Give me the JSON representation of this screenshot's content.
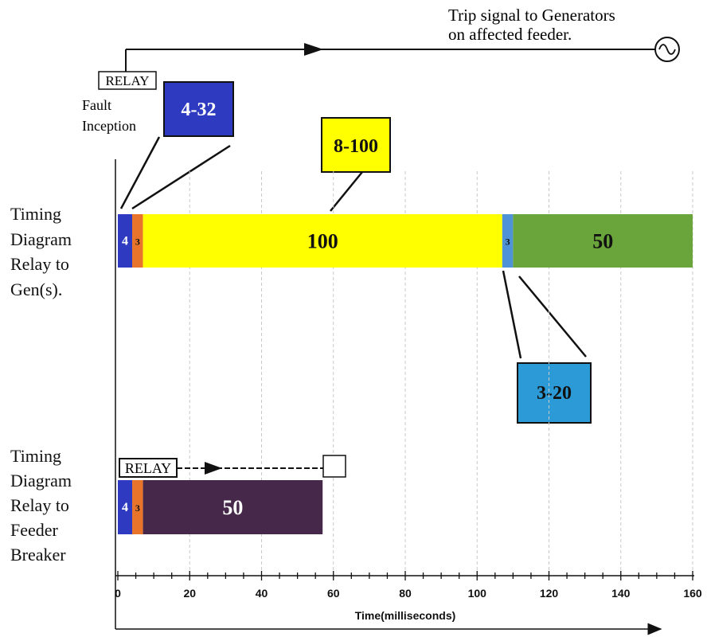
{
  "trip_signal": {
    "line1": "Trip signal to Generators",
    "line2": "on affected feeder."
  },
  "fault": {
    "relay_label": "RELAY",
    "fault_label_1": "Fault",
    "fault_label_2": "Inception"
  },
  "callouts": {
    "c1": {
      "text": "4-32",
      "color": "#2e3bc0"
    },
    "c2": {
      "text": "8-100",
      "color": "#ffff00"
    },
    "c3": {
      "text": "3-20",
      "color": "#2b9ad6"
    }
  },
  "row_labels": {
    "gen": [
      "Timing",
      "Diagram",
      "Relay to",
      "Gen(s)."
    ],
    "feeder": [
      "Timing",
      "Diagram",
      "Relay to",
      "Feeder",
      "Breaker"
    ]
  },
  "relay2_label": "RELAY",
  "axis": {
    "title": "Time(milliseconds)",
    "ticks": [
      "0",
      "20",
      "40",
      "60",
      "80",
      "100",
      "120",
      "140",
      "160"
    ]
  },
  "chart_data": {
    "type": "bar",
    "xlabel": "Time(milliseconds)",
    "xlim": [
      0,
      160
    ],
    "rows": [
      {
        "name": "Timing Diagram Relay to Gen(s).",
        "segments": [
          {
            "value": 4,
            "label": "4",
            "color": "#2e3bc0"
          },
          {
            "value": 3,
            "label": "3",
            "color": "#e8732a"
          },
          {
            "value": 100,
            "label": "100",
            "color": "#ffff00"
          },
          {
            "value": 3,
            "label": "3",
            "color": "#4f92d6"
          },
          {
            "value": 50,
            "label": "50",
            "color": "#6aa53c"
          }
        ]
      },
      {
        "name": "Timing Diagram Relay to Feeder Breaker",
        "segments": [
          {
            "value": 4,
            "label": "4",
            "color": "#2e3bc0"
          },
          {
            "value": 3,
            "label": "3",
            "color": "#e8732a"
          },
          {
            "value": 50,
            "label": "50",
            "color": "#46284a"
          }
        ]
      }
    ]
  }
}
